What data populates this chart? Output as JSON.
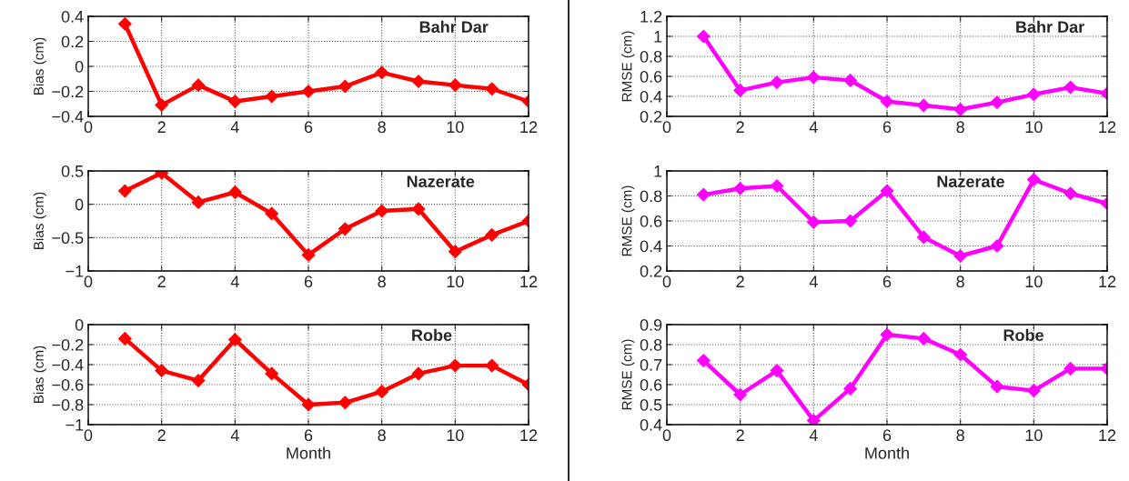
{
  "chart_data": [
    {
      "type": "line",
      "ylabel": "Bias (cm)",
      "annotations": [
        "Bahr Dar"
      ],
      "x": [
        1,
        2,
        3,
        4,
        5,
        6,
        7,
        8,
        9,
        10,
        11,
        12
      ],
      "series": [
        {
          "color": "#ff0000",
          "values": [
            0.34,
            -0.31,
            -0.15,
            -0.28,
            -0.24,
            -0.2,
            -0.16,
            -0.05,
            -0.12,
            -0.15,
            -0.18,
            -0.28
          ]
        }
      ],
      "xlim": [
        0,
        12
      ],
      "xticks": [
        0,
        2,
        4,
        6,
        8,
        10,
        12
      ],
      "ylim": [
        -0.4,
        0.4
      ],
      "yticks": [
        {
          "value": -0.4,
          "label": "−0.4"
        },
        {
          "value": -0.2,
          "label": "−0.2"
        },
        0,
        0.2,
        0.4
      ],
      "grid": true,
      "marker": "diamond",
      "line_style": "solid"
    },
    {
      "type": "line",
      "ylabel": "RMSE (cm)",
      "annotations": [
        "Bahr Dar"
      ],
      "x": [
        1,
        2,
        3,
        4,
        5,
        6,
        7,
        8,
        9,
        10,
        11,
        12
      ],
      "series": [
        {
          "color": "#ff00ff",
          "values": [
            1.0,
            0.46,
            0.54,
            0.59,
            0.56,
            0.35,
            0.31,
            0.27,
            0.34,
            0.42,
            0.49,
            0.43
          ]
        }
      ],
      "xlim": [
        0,
        12
      ],
      "xticks": [
        0,
        2,
        4,
        6,
        8,
        10,
        12
      ],
      "ylim": [
        0.2,
        1.2
      ],
      "yticks": [
        0.2,
        0.4,
        0.6,
        0.8,
        1,
        1.2
      ],
      "grid": true,
      "marker": "diamond",
      "line_style": "solid"
    },
    {
      "type": "line",
      "ylabel": "Bias (cm)",
      "annotations": [
        "Nazerate"
      ],
      "x": [
        1,
        2,
        3,
        4,
        5,
        6,
        7,
        8,
        9,
        10,
        11,
        12
      ],
      "series": [
        {
          "color": "#ff0000",
          "values": [
            0.2,
            0.47,
            0.03,
            0.18,
            -0.14,
            -0.76,
            -0.37,
            -0.1,
            -0.07,
            -0.71,
            -0.46,
            -0.25
          ]
        }
      ],
      "xlim": [
        0,
        12
      ],
      "xticks": [
        0,
        2,
        4,
        6,
        8,
        10,
        12
      ],
      "ylim": [
        -1,
        0.5
      ],
      "yticks": [
        {
          "value": -1,
          "label": "−1"
        },
        {
          "value": -0.5,
          "label": "−0.5"
        },
        0,
        0.5
      ],
      "grid": true,
      "marker": "diamond",
      "line_style": "solid"
    },
    {
      "type": "line",
      "ylabel": "RMSE (cm)",
      "annotations": [
        "Nazerate"
      ],
      "x": [
        1,
        2,
        3,
        4,
        5,
        6,
        7,
        8,
        9,
        10,
        11,
        12
      ],
      "series": [
        {
          "color": "#ff00ff",
          "values": [
            0.81,
            0.86,
            0.88,
            0.59,
            0.6,
            0.84,
            0.47,
            0.32,
            0.4,
            0.93,
            0.82,
            0.74
          ]
        }
      ],
      "xlim": [
        0,
        12
      ],
      "xticks": [
        0,
        2,
        4,
        6,
        8,
        10,
        12
      ],
      "ylim": [
        0.2,
        1
      ],
      "yticks": [
        0.2,
        0.4,
        0.6,
        0.8,
        1
      ],
      "grid": true,
      "marker": "diamond",
      "line_style": "solid"
    },
    {
      "type": "line",
      "ylabel": "Bias (cm)",
      "xlabel": "Month",
      "annotations": [
        "Robe"
      ],
      "x": [
        1,
        2,
        3,
        4,
        5,
        6,
        7,
        8,
        9,
        10,
        11,
        12
      ],
      "series": [
        {
          "color": "#ff0000",
          "values": [
            -0.14,
            -0.46,
            -0.56,
            -0.15,
            -0.49,
            -0.8,
            -0.78,
            -0.67,
            -0.49,
            -0.41,
            -0.41,
            -0.6
          ]
        }
      ],
      "xlim": [
        0,
        12
      ],
      "xticks": [
        0,
        2,
        4,
        6,
        8,
        10,
        12
      ],
      "ylim": [
        -1,
        0
      ],
      "yticks": [
        {
          "value": -1,
          "label": "−1"
        },
        {
          "value": -0.8,
          "label": "−0.8"
        },
        {
          "value": -0.6,
          "label": "−0.6"
        },
        {
          "value": -0.4,
          "label": "−0.4"
        },
        {
          "value": -0.2,
          "label": "−0.2"
        },
        0
      ],
      "grid": true,
      "marker": "diamond",
      "line_style": "solid"
    },
    {
      "type": "line",
      "ylabel": "RMSE (cm)",
      "xlabel": "Month",
      "annotations": [
        "Robe"
      ],
      "x": [
        1,
        2,
        3,
        4,
        5,
        6,
        7,
        8,
        9,
        10,
        11,
        12
      ],
      "series": [
        {
          "color": "#ff00ff",
          "values": [
            0.72,
            0.55,
            0.67,
            0.42,
            0.58,
            0.85,
            0.83,
            0.75,
            0.59,
            0.57,
            0.68,
            0.68
          ]
        }
      ],
      "xlim": [
        0,
        12
      ],
      "xticks": [
        0,
        2,
        4,
        6,
        8,
        10,
        12
      ],
      "ylim": [
        0.4,
        0.9
      ],
      "yticks": [
        0.4,
        0.5,
        0.6,
        0.7,
        0.8,
        0.9
      ],
      "grid": true,
      "marker": "diamond",
      "line_style": "solid"
    }
  ]
}
